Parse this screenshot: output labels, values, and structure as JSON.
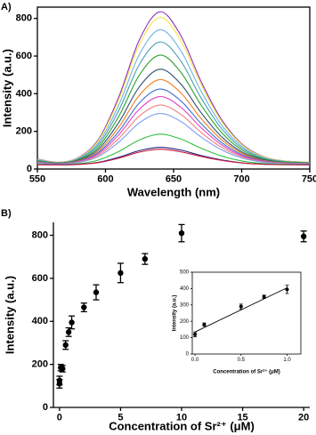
{
  "chart_data": [
    {
      "type": "line",
      "panel_label": "A)",
      "xlabel": "Wavelength (nm)",
      "ylabel": "Intensity (a.u.)",
      "xlim": [
        550,
        750
      ],
      "ylim": [
        0,
        860
      ],
      "xticks": [
        550,
        600,
        650,
        700,
        750
      ],
      "yticks": [
        0,
        200,
        400,
        600,
        800
      ],
      "frame": true,
      "x": [
        550,
        565,
        580,
        595,
        610,
        625,
        640,
        655,
        670,
        685,
        700,
        715,
        730,
        750
      ],
      "series": [
        {
          "color": "#8e2fc0",
          "values": [
            53,
            36,
            61,
            159,
            387,
            688,
            835,
            713,
            468,
            265,
            134,
            69,
            44,
            36
          ]
        },
        {
          "color": "#f5e43a",
          "values": [
            51,
            36,
            59,
            153,
            373,
            664,
            805,
            687,
            452,
            256,
            130,
            67,
            44,
            36
          ]
        },
        {
          "color": "#6cb2e6",
          "values": [
            49,
            34,
            56,
            142,
            344,
            610,
            740,
            632,
            416,
            236,
            121,
            63,
            42,
            34
          ]
        },
        {
          "color": "#4a9fb0",
          "values": [
            46,
            33,
            53,
            131,
            315,
            557,
            675,
            577,
            380,
            217,
            112,
            59,
            40,
            33
          ]
        },
        {
          "color": "#2ca02c",
          "values": [
            43,
            32,
            49,
            119,
            283,
            500,
            605,
            517,
            342,
            196,
            102,
            55,
            38,
            32
          ]
        },
        {
          "color": "#2f4f6f",
          "values": [
            40,
            30,
            46,
            107,
            250,
            438,
            530,
            454,
            301,
            173,
            91,
            51,
            35,
            30
          ]
        },
        {
          "color": "#f08020",
          "values": [
            38,
            29,
            43,
            97,
            225,
            393,
            475,
            407,
            270,
            157,
            84,
            47,
            34,
            29
          ]
        },
        {
          "color": "#3d6fd0",
          "values": [
            36,
            28,
            40,
            89,
            202,
            352,
            425,
            364,
            243,
            142,
            77,
            44,
            32,
            28
          ]
        },
        {
          "color": "#e040c0",
          "values": [
            35,
            27,
            38,
            82,
            184,
            319,
            385,
            330,
            221,
            130,
            71,
            42,
            31,
            27
          ]
        },
        {
          "color": "#f08080",
          "values": [
            33,
            26,
            36,
            74,
            164,
            282,
            340,
            292,
            196,
            116,
            65,
            39,
            30,
            26
          ]
        },
        {
          "color": "#7aa0f0",
          "values": [
            31,
            26,
            34,
            67,
            144,
            246,
            295,
            254,
            171,
            103,
            59,
            37,
            28,
            26
          ]
        },
        {
          "color": "#30c040",
          "values": [
            27,
            23,
            28,
            48,
            94,
            155,
            185,
            160,
            111,
            70,
            43,
            30,
            25,
            23
          ]
        },
        {
          "color": "#202080",
          "values": [
            24,
            22,
            25,
            36,
            63,
            98,
            115,
            101,
            72,
            49,
            33,
            26,
            23,
            22
          ]
        },
        {
          "color": "#d02040",
          "values": [
            23,
            22,
            24,
            34,
            58,
            90,
            105,
            92,
            67,
            46,
            32,
            25,
            23,
            22
          ]
        }
      ]
    },
    {
      "type": "errorbar",
      "panel_label": "B)",
      "xlabel": "Concentration of Sr²⁺ (μM)",
      "ylabel": "Intensity (a.u.)",
      "xlim": [
        -0.5,
        20.5
      ],
      "ylim": [
        0,
        860
      ],
      "xticks": [
        0,
        5,
        10,
        15,
        20
      ],
      "yticks": [
        0,
        200,
        400,
        600,
        800
      ],
      "frame": false,
      "color": "#000000",
      "x": [
        0,
        0,
        0.1,
        0.25,
        0.5,
        0.75,
        1,
        2,
        3,
        5,
        7,
        10,
        20
      ],
      "values": [
        110,
        125,
        185,
        180,
        290,
        350,
        395,
        465,
        535,
        625,
        690,
        810,
        795
      ],
      "errors": [
        20,
        20,
        15,
        15,
        20,
        20,
        30,
        20,
        35,
        45,
        25,
        40,
        25
      ]
    },
    {
      "type": "errorbar",
      "xlabel": "Concentration of Sr²⁺ (μM)",
      "ylabel": "Intensity (a.u.)",
      "xlim": [
        -0.03,
        1.15
      ],
      "ylim": [
        0,
        500
      ],
      "xticks": [
        {
          "value": 0,
          "label": "0.0"
        },
        0.5,
        {
          "value": 1,
          "label": "1.0"
        }
      ],
      "yticks": [
        0,
        100,
        200,
        300,
        400,
        500
      ],
      "frame": true,
      "color": "#000000",
      "x": [
        0,
        0.1,
        0.5,
        0.75,
        1
      ],
      "values": [
        120,
        180,
        290,
        350,
        395
      ],
      "errors": [
        15,
        10,
        15,
        10,
        25
      ],
      "fit": {
        "x": [
          0,
          1
        ],
        "y": [
          135,
          405
        ]
      }
    }
  ]
}
